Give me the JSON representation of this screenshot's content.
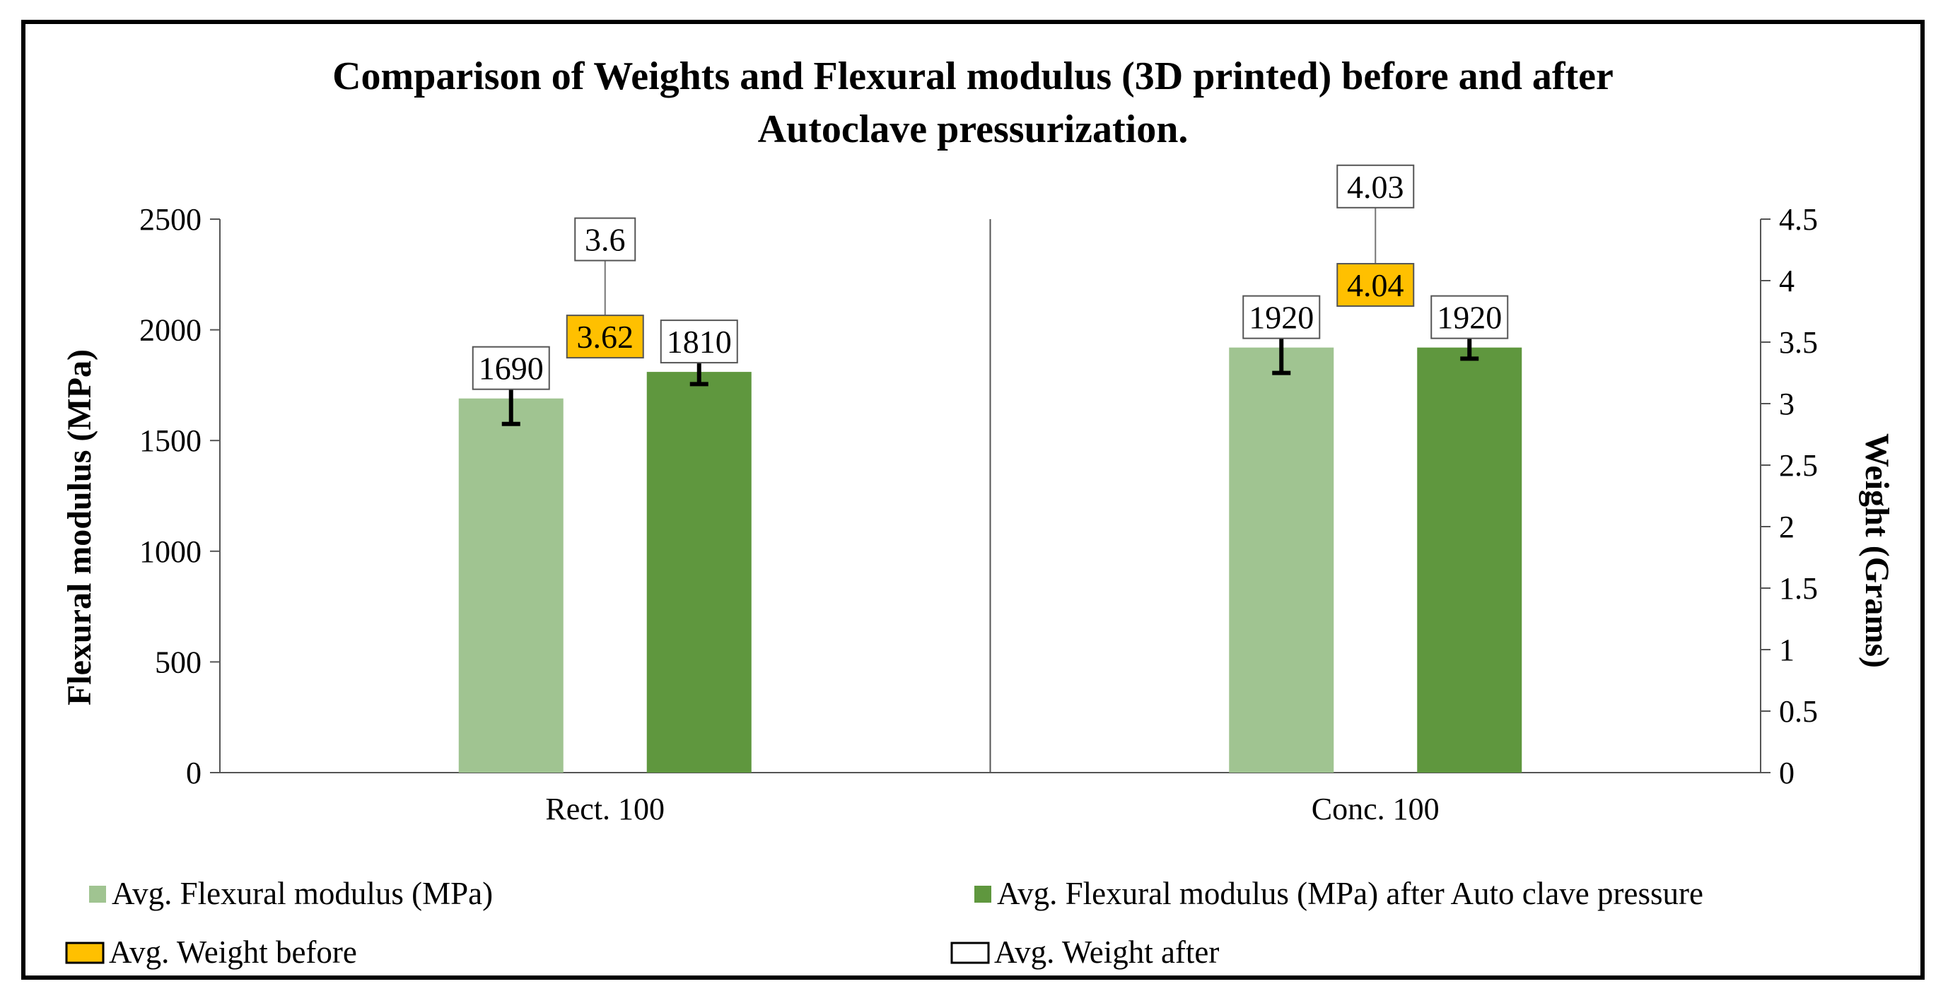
{
  "chart_data": {
    "type": "bar",
    "title_line1": "Comparison of Weights and Flexural modulus (3D printed) before and after",
    "title_line2": "Autoclave pressurization.",
    "categories": [
      "Rect. 100",
      "Conc. 100"
    ],
    "ylabel": "Flexural modulus (MPa)",
    "y2label": "Weight (Grams)",
    "ylim": [
      0,
      2500
    ],
    "y2lim": [
      0,
      4.5
    ],
    "yticks": [
      "0",
      "500",
      "1000",
      "1500",
      "2000",
      "2500"
    ],
    "y2ticks": [
      "0",
      "0.5",
      "1",
      "1.5",
      "2",
      "2.5",
      "3",
      "3.5",
      "4",
      "4.5"
    ],
    "series": [
      {
        "name": "Avg. Flexural modulus (MPa)",
        "axis": "left",
        "kind": "bar",
        "color": "#a0c491",
        "values": [
          1690,
          1920
        ],
        "labels": [
          "1690",
          "1920"
        ],
        "error_low": [
          1575,
          1805
        ],
        "error_high": [
          1800,
          2030
        ]
      },
      {
        "name": "Avg. Flexural modulus (MPa) after Auto clave pressure",
        "axis": "left",
        "kind": "bar",
        "color": "#5f973e",
        "values": [
          1810,
          1920
        ],
        "labels": [
          "1810",
          "1920"
        ],
        "error_low": [
          1755,
          1870
        ],
        "error_high": [
          1870,
          1980
        ]
      },
      {
        "name": "Avg. Weight before",
        "axis": "right",
        "kind": "marker",
        "color": "#ffc000",
        "values": [
          3.62,
          4.04
        ],
        "labels": [
          "3.62",
          "4.04"
        ]
      },
      {
        "name": "Avg. Weight after",
        "axis": "right",
        "kind": "marker",
        "color": "#ffffff",
        "values": [
          3.6,
          4.03
        ],
        "labels": [
          "3.6",
          "4.03"
        ]
      }
    ],
    "legend_position": "bottom"
  }
}
